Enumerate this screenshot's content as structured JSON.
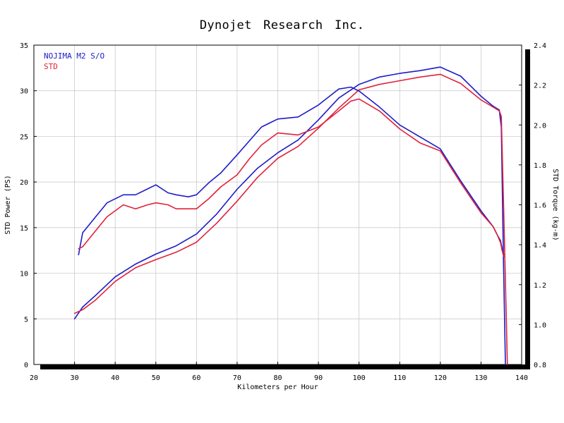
{
  "chart_data": {
    "type": "line",
    "title": "Dynojet Research Inc.",
    "xlabel": "Kilometers per Hour",
    "ylabel_left": "STD Power (PS)",
    "ylabel_right": "STD Torque (kg-m)",
    "xlim": [
      20,
      140
    ],
    "ylim_left": [
      0,
      35
    ],
    "ylim_right": [
      0.8,
      2.4
    ],
    "x_ticks": [
      "20",
      "30",
      "40",
      "50",
      "60",
      "70",
      "80",
      "90",
      "100",
      "110",
      "120",
      "130",
      "140"
    ],
    "y_left_ticks": [
      "0",
      "5",
      "10",
      "15",
      "20",
      "25",
      "30",
      "35"
    ],
    "y_right_ticks": [
      "0.8",
      "1.0",
      "1.2",
      "1.4",
      "1.6",
      "1.8",
      "2.0",
      "2.2",
      "2.4"
    ],
    "grid": true,
    "legend_position": "top-left",
    "colors": {
      "NOJIMA M2 S/O": "#1c1cc8",
      "STD": "#e0223c"
    },
    "series": [
      {
        "name": "NOJIMA M2 S/O",
        "measure": "power",
        "axis": "left",
        "x": [
          30,
          32,
          35,
          40,
          45,
          50,
          55,
          60,
          65,
          70,
          75,
          80,
          85,
          90,
          95,
          100,
          105,
          110,
          115,
          120,
          125,
          130,
          133,
          134.5,
          135,
          135.5,
          136
        ],
        "values": [
          5.0,
          6.3,
          7.5,
          9.6,
          11.0,
          12.1,
          13.0,
          14.3,
          16.5,
          19.2,
          21.5,
          23.2,
          24.6,
          26.8,
          29.2,
          30.7,
          31.5,
          31.9,
          32.2,
          32.6,
          31.6,
          29.4,
          28.3,
          27.9,
          26.0,
          12.0,
          0
        ]
      },
      {
        "name": "STD",
        "measure": "power",
        "axis": "left",
        "x": [
          30,
          32,
          35,
          40,
          45,
          50,
          55,
          60,
          65,
          70,
          75,
          80,
          85,
          90,
          95,
          100,
          105,
          110,
          115,
          120,
          125,
          130,
          133,
          134.5,
          135,
          135.7,
          136.5
        ],
        "values": [
          5.6,
          6.0,
          7.0,
          9.1,
          10.6,
          11.5,
          12.3,
          13.4,
          15.5,
          17.9,
          20.5,
          22.6,
          23.9,
          25.9,
          28.1,
          30.1,
          30.7,
          31.1,
          31.5,
          31.8,
          30.8,
          29.0,
          28.2,
          27.8,
          27.2,
          15.0,
          0
        ]
      },
      {
        "name": "NOJIMA M2 S/O",
        "measure": "torque",
        "axis": "right",
        "x": [
          31,
          32,
          34,
          38,
          42,
          45,
          48,
          50,
          53,
          55,
          58,
          60,
          63,
          66,
          70,
          73,
          76,
          80,
          85,
          90,
          95,
          98,
          100,
          105,
          110,
          115,
          120,
          125,
          130,
          133,
          134,
          134.8,
          135.2,
          135.6
        ],
        "values": [
          1.35,
          1.46,
          1.51,
          1.61,
          1.65,
          1.65,
          1.68,
          1.7,
          1.66,
          1.65,
          1.64,
          1.65,
          1.71,
          1.76,
          1.85,
          1.92,
          1.99,
          2.03,
          2.04,
          2.1,
          2.18,
          2.19,
          2.17,
          2.09,
          2.0,
          1.94,
          1.88,
          1.72,
          1.57,
          1.49,
          1.45,
          1.42,
          1.38,
          1.35
        ]
      },
      {
        "name": "STD",
        "measure": "torque",
        "axis": "right",
        "x": [
          31,
          32,
          34,
          38,
          42,
          45,
          48,
          50,
          53,
          55,
          58,
          60,
          63,
          66,
          70,
          73,
          76,
          80,
          85,
          90,
          95,
          98,
          100,
          105,
          110,
          115,
          120,
          125,
          130,
          133,
          134,
          134.8,
          135.2,
          135.6
        ],
        "values": [
          1.38,
          1.39,
          1.44,
          1.54,
          1.6,
          1.58,
          1.6,
          1.61,
          1.6,
          1.58,
          1.58,
          1.58,
          1.63,
          1.69,
          1.75,
          1.83,
          1.9,
          1.96,
          1.95,
          1.99,
          2.07,
          2.12,
          2.13,
          2.07,
          1.98,
          1.91,
          1.87,
          1.71,
          1.56,
          1.49,
          1.45,
          1.41,
          1.37,
          1.34
        ]
      }
    ]
  }
}
